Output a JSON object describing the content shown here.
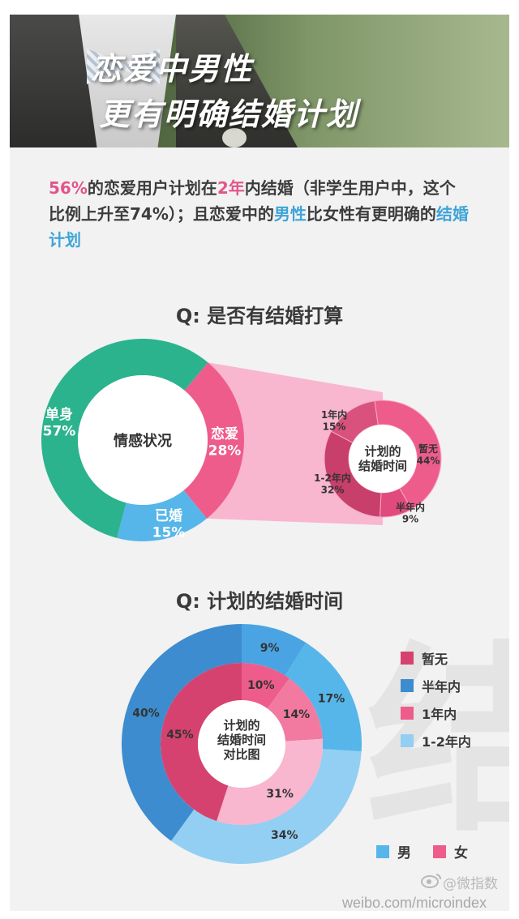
{
  "hero": {
    "line1": "恋爱中男性",
    "line2": "更有明确结婚计划"
  },
  "intro": {
    "p1": "56%",
    "p2": "的恋爱用户计划在",
    "p3": "2年",
    "p4": "内结婚（非学生用户中，这个比例上升至74%）；且恋爱中的",
    "p5": "男性",
    "p6": "比女性有更明确的",
    "p7": "结婚计划"
  },
  "q1": {
    "title": "Q:  是否有结婚打算"
  },
  "q2": {
    "title": "Q:  计划的结婚时间"
  },
  "colors": {
    "green": "#2bb38e",
    "pink": "#ee5c8c",
    "blue": "#56b6ea",
    "lightpink": "#f8b6cf",
    "darkpink": "#d6426f",
    "steelblue": "#3d8ccf",
    "lightblue": "#93cff3"
  },
  "chart_data": [
    {
      "type": "pie",
      "center_label": "情感状况",
      "slices": [
        {
          "label": "单身",
          "value": 57,
          "display": "57%",
          "color": "#2bb38e"
        },
        {
          "label": "恋爱",
          "value": 28,
          "display": "28%",
          "color": "#ee5c8c"
        },
        {
          "label": "已婚",
          "value": 15,
          "display": "15%",
          "color": "#56b6ea"
        }
      ]
    },
    {
      "type": "pie",
      "center_label_lines": [
        "计划的",
        "结婚时间"
      ],
      "slices": [
        {
          "label": "暂无",
          "value": 44,
          "display": "44%",
          "color": "#ee5c8c"
        },
        {
          "label": "半年内",
          "value": 9,
          "display": "9%",
          "color": "#e04a7d"
        },
        {
          "label": "1-2年内",
          "value": 32,
          "display": "32%",
          "color": "#c83f6c"
        },
        {
          "label": "1年内",
          "value": 15,
          "display": "15%",
          "color": "#d8527d"
        }
      ]
    },
    {
      "type": "pie",
      "center_label_lines": [
        "计划的",
        "结婚时间",
        "对比图"
      ],
      "categories": [
        "暂无",
        "半年内",
        "1年内",
        "1-2年内"
      ],
      "series": [
        {
          "name": "男",
          "values": [
            40,
            9,
            17,
            34
          ],
          "labels": [
            "40%",
            "9%",
            "17%",
            "34%"
          ]
        },
        {
          "name": "女",
          "values": [
            45,
            10,
            14,
            31
          ],
          "labels": [
            "45%",
            "10%",
            "14%",
            "31%"
          ]
        }
      ],
      "legend": [
        {
          "label": "暂无",
          "color": "#d6426f"
        },
        {
          "label": "半年内",
          "color": "#3d8ccf"
        },
        {
          "label": "1年内",
          "color": "#ee5c8c"
        },
        {
          "label": "1-2年内",
          "color": "#93cff3"
        }
      ],
      "gender_legend": [
        {
          "label": "男",
          "color": "#56b6ea"
        },
        {
          "label": "女",
          "color": "#ee5c8c"
        }
      ]
    }
  ],
  "watermark": "结婚",
  "footer": {
    "brand": "@微指数",
    "url": "weibo.com/microindex"
  }
}
